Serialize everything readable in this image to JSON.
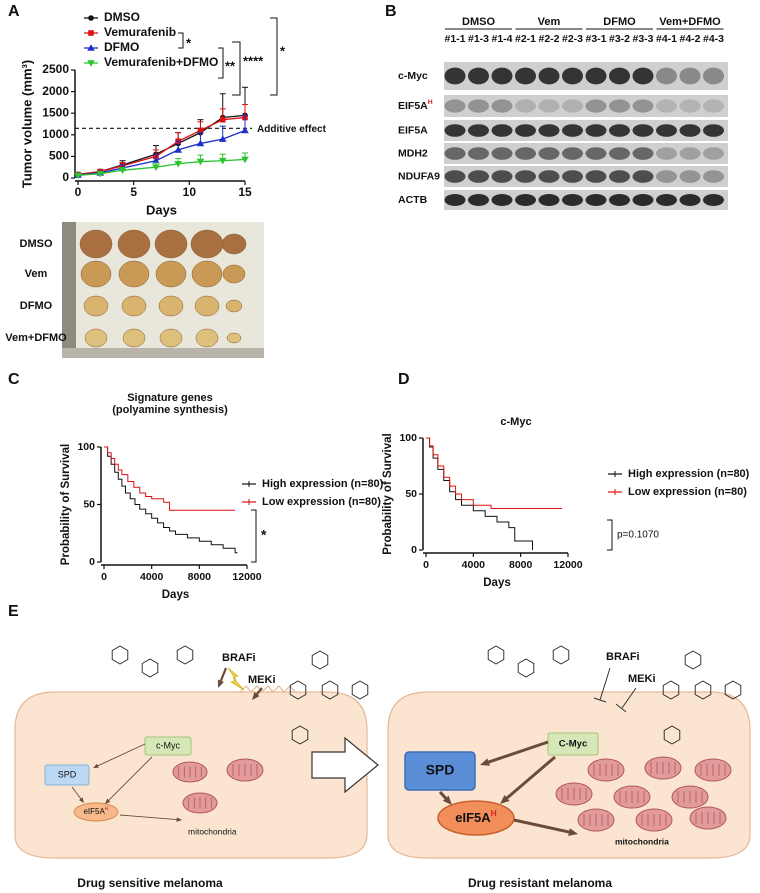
{
  "panels": [
    "A",
    "B",
    "C",
    "D",
    "E"
  ],
  "chart_data": [
    {
      "type": "line",
      "ylabel": "Tumor volume (mm³)",
      "xlabel": "Days",
      "x": [
        0,
        2,
        4,
        7,
        9,
        11,
        13,
        15
      ],
      "series": [
        {
          "name": "DMSO",
          "color": "#111111",
          "marker": "circle",
          "values": [
            80,
            150,
            300,
            550,
            800,
            1050,
            1400,
            1450
          ],
          "errors": [
            20,
            40,
            100,
            200,
            250,
            300,
            550,
            650
          ]
        },
        {
          "name": "Vemurafenib",
          "color": "#dd1111",
          "marker": "square",
          "values": [
            80,
            150,
            280,
            500,
            850,
            1100,
            1350,
            1400
          ],
          "errors": [
            20,
            30,
            80,
            150,
            200,
            200,
            250,
            300
          ]
        },
        {
          "name": "DFMO",
          "color": "#1f2fc8",
          "marker": "triangle-up",
          "values": [
            70,
            120,
            230,
            400,
            650,
            800,
            900,
            1100
          ],
          "errors": [
            15,
            30,
            80,
            150,
            200,
            250,
            300,
            350
          ]
        },
        {
          "name": "Vemurafenib+DFMO",
          "color": "#2ec42e",
          "marker": "triangle-down",
          "values": [
            60,
            100,
            180,
            250,
            330,
            380,
            400,
            430
          ],
          "errors": [
            15,
            25,
            60,
            100,
            120,
            150,
            150,
            150
          ]
        }
      ],
      "xlim": [
        0,
        15
      ],
      "xticks": [
        0,
        5,
        10,
        15
      ],
      "ylim": [
        0,
        2500
      ],
      "yticks": [
        0,
        500,
        1000,
        1500,
        2000,
        2500
      ],
      "reference_line": {
        "value": 1150,
        "label": "Additive effect"
      },
      "annotations": [
        "*",
        "**",
        "****",
        "*"
      ]
    },
    {
      "type": "survival",
      "title": [
        "Signature genes",
        "(polyamine synthesis)"
      ],
      "ylabel": "Probability of Survival",
      "xlabel": "Days",
      "xlim": [
        0,
        12000
      ],
      "xticks": [
        0,
        4000,
        8000,
        12000
      ],
      "ylim": [
        0,
        100
      ],
      "yticks": [
        0,
        50,
        100
      ],
      "series": [
        {
          "name": "High expression (n=80)",
          "color": "#111111",
          "x": [
            0,
            300,
            600,
            900,
            1200,
            1500,
            1800,
            2200,
            2600,
            3000,
            3500,
            4000,
            4500,
            5000,
            5500,
            6000,
            7000,
            8000,
            9000,
            10000,
            11000,
            11200
          ],
          "values": [
            100,
            92,
            85,
            78,
            72,
            66,
            60,
            55,
            50,
            46,
            42,
            38,
            34,
            30,
            27,
            24,
            21,
            18,
            15,
            12,
            8,
            8
          ]
        },
        {
          "name": "Low expression (n=80)",
          "color": "#dd1111",
          "x": [
            0,
            300,
            600,
            900,
            1200,
            1500,
            2000,
            2500,
            3000,
            3500,
            4000,
            5000,
            5500,
            11000
          ],
          "values": [
            100,
            95,
            90,
            85,
            80,
            76,
            70,
            65,
            60,
            57,
            55,
            52,
            45,
            45
          ]
        }
      ],
      "annotation": "*"
    },
    {
      "type": "survival",
      "title": [
        "c-Myc"
      ],
      "ylabel": "Probability of Survival",
      "xlabel": "Days",
      "xlim": [
        0,
        12000
      ],
      "xticks": [
        0,
        4000,
        8000,
        12000
      ],
      "ylim": [
        0,
        100
      ],
      "yticks": [
        0,
        50,
        100
      ],
      "series": [
        {
          "name": "High expression (n=80)",
          "color": "#111111",
          "x": [
            0,
            300,
            600,
            1000,
            1500,
            2000,
            2500,
            3000,
            4000,
            5000,
            6000,
            7000,
            7500,
            9000
          ],
          "values": [
            100,
            92,
            82,
            72,
            62,
            52,
            45,
            40,
            35,
            30,
            25,
            20,
            8,
            0
          ]
        },
        {
          "name": "Low expression (n=80)",
          "color": "#dd1111",
          "x": [
            0,
            300,
            600,
            1000,
            1500,
            2000,
            2500,
            3000,
            4000,
            5500,
            11500
          ],
          "values": [
            100,
            93,
            85,
            75,
            65,
            57,
            50,
            45,
            40,
            37,
            37
          ]
        }
      ],
      "annotation": "p=0.1070"
    }
  ],
  "photo": {
    "rows": [
      "DMSO",
      "Vem",
      "DFMO",
      "Vem+DFMO"
    ]
  },
  "blot": {
    "groups": [
      {
        "name": "DMSO",
        "lanes": [
          "#1-1",
          "#1-3",
          "#1-4"
        ]
      },
      {
        "name": "Vem",
        "lanes": [
          "#2-1",
          "#2-2",
          "#2-3"
        ]
      },
      {
        "name": "DFMO",
        "lanes": [
          "#3-1",
          "#3-2",
          "#3-3"
        ]
      },
      {
        "name": "Vem+DFMO",
        "lanes": [
          "#4-1",
          "#4-2",
          "#4-3"
        ]
      }
    ],
    "rows": [
      {
        "text": "c-Myc"
      },
      {
        "text": "EIF5A",
        "sup": "H"
      },
      {
        "text": "EIF5A"
      },
      {
        "text": "MDH2"
      },
      {
        "text": "NDUFA9"
      },
      {
        "text": "ACTB"
      }
    ]
  },
  "diagram": {
    "left": {
      "drugs": [
        "BRAFi",
        "MEKi"
      ],
      "cmyc": "c-Myc",
      "spd": "SPD",
      "eif5a": {
        "text": "eIF5A",
        "sup": "H"
      },
      "mito": "mitochondria",
      "caption": "Drug sensitive melanoma"
    },
    "right": {
      "drugs": [
        "BRAFi",
        "MEKi"
      ],
      "cmyc": "C-Myc",
      "spd": "SPD",
      "eif5a": {
        "text": "eIF5A",
        "sup": "H"
      },
      "mito": "mitochondria",
      "caption": "Drug resistant melanoma"
    }
  }
}
